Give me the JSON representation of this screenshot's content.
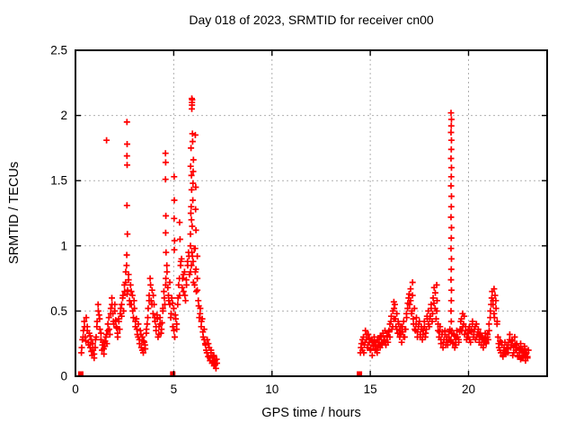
{
  "colors": {
    "marker": "#ff0000",
    "grid": "#b0b0b0",
    "frame": "#000000",
    "text": "#000000",
    "background": "#ffffff"
  },
  "chart_data": {
    "type": "scatter",
    "title": "Day 018 of 2023, SRMTID for receiver cn00",
    "xlabel": "GPS time / hours",
    "ylabel": "SRMTID / TECUs",
    "x_range": [
      0,
      24
    ],
    "y_range": [
      0,
      2.5
    ],
    "xticks": [
      {
        "value": 0,
        "label": "0"
      },
      {
        "value": 5,
        "label": "5"
      },
      {
        "value": 10,
        "label": "10"
      },
      {
        "value": 15,
        "label": "15"
      },
      {
        "value": 20,
        "label": "20"
      }
    ],
    "yticks": [
      {
        "value": 0,
        "label": "0"
      },
      {
        "value": 0.5,
        "label": "0.5"
      },
      {
        "value": 1,
        "label": "1"
      },
      {
        "value": 1.5,
        "label": "1.5"
      },
      {
        "value": 2,
        "label": "2"
      },
      {
        "value": 2.5,
        "label": "2.5"
      }
    ],
    "grid": "dashed",
    "legend": "none",
    "series": [
      {
        "name": "SRMTID",
        "marker": "plus",
        "color": "#ff0000",
        "runs": [
          {
            "t0": 0.3,
            "dt": 0.05,
            "values": [
              0.18,
              0.28,
              0.35,
              0.42,
              0.3,
              0.45,
              0.38,
              0.26,
              0.33,
              0.22,
              0.28,
              0.16,
              0.2,
              0.14,
              0.22,
              0.3,
              0.42,
              0.55,
              0.47,
              0.36,
              0.28,
              0.2,
              0.26,
              0.17,
              0.23,
              0.3,
              0.25,
              0.35,
              0.45,
              0.32,
              0.52,
              0.6,
              0.48,
              0.4,
              0.55,
              0.43,
              0.37,
              0.3,
              0.44,
              0.36,
              0.52,
              0.46,
              0.6,
              0.5,
              0.65,
              0.72,
              0.85,
              0.66,
              0.78,
              0.58,
              0.7,
              0.55,
              0.62,
              0.45,
              0.52,
              0.38,
              0.44,
              0.32,
              0.4,
              0.28,
              0.35,
              0.22,
              0.3,
              0.18,
              0.26,
              0.21,
              0.33,
              0.4,
              0.52,
              0.62,
              0.75,
              0.58,
              0.66,
              0.48,
              0.55,
              0.42,
              0.35,
              0.47,
              0.3,
              0.38,
              0.45,
              0.33,
              0.41,
              0.5,
              0.65,
              0.55,
              0.75,
              0.85,
              0.68,
              0.58,
              0.72,
              0.45,
              0.6,
              0.38,
              0.52,
              0.3,
              0.44,
              0.36,
              0.55,
              0.7,
              0.62,
              0.85,
              0.9,
              0.75,
              0.65,
              0.8,
              0.58,
              0.7,
              0.88,
              0.95,
              0.78,
              1.0,
              0.85,
              0.92,
              0.72,
              0.98,
              0.8,
              0.65,
              0.75,
              0.58,
              0.45,
              0.52,
              0.38,
              0.44,
              0.3,
              0.36,
              0.25,
              0.2,
              0.28,
              0.15,
              0.22,
              0.12,
              0.18,
              0.1,
              0.15,
              0.08,
              0.12,
              0.06,
              0.1
            ]
          },
          {
            "t0": 0.32,
            "dt": 0.07,
            "values": [
              0.22,
              0.3,
              0.38,
              0.27,
              0.35,
              0.24,
              0.31,
              0.19,
              0.25,
              0.17,
              0.28,
              0.38,
              0.5,
              0.44,
              0.33,
              0.24,
              0.21,
              0.27,
              0.32,
              0.4,
              0.36,
              0.48,
              0.55,
              0.42,
              0.5,
              0.38,
              0.33,
              0.42,
              0.48,
              0.55,
              0.62,
              0.7,
              0.8,
              0.63,
              0.74,
              0.55,
              0.65,
              0.5,
              0.58,
              0.42,
              0.36,
              0.3,
              0.25,
              0.32,
              0.2,
              0.27,
              0.24,
              0.36,
              0.45,
              0.58,
              0.7,
              0.55,
              0.62,
              0.45,
              0.38,
              0.44,
              0.32,
              0.4,
              0.36,
              0.52,
              0.6,
              0.7,
              0.8,
              0.62,
              0.55,
              0.48,
              0.56,
              0.35,
              0.47,
              0.4,
              0.6,
              0.75,
              0.88,
              0.68,
              0.78,
              0.62,
              0.74,
              0.85,
              0.92,
              0.8,
              0.95,
              0.88,
              0.7,
              0.82,
              0.66,
              0.54,
              0.48,
              0.42,
              0.34,
              0.28,
              0.24,
              0.18,
              0.25,
              0.14,
              0.2,
              0.11,
              0.16,
              0.09,
              0.13
            ]
          },
          {
            "t0": 14.5,
            "dt": 0.05,
            "values": [
              0.18,
              0.25,
              0.2,
              0.3,
              0.24,
              0.35,
              0.28,
              0.22,
              0.32,
              0.26,
              0.2,
              0.28,
              0.16,
              0.24,
              0.3,
              0.21,
              0.26,
              0.18,
              0.23,
              0.28,
              0.22,
              0.3,
              0.25,
              0.33,
              0.27,
              0.35,
              0.24,
              0.31,
              0.26,
              0.35,
              0.3,
              0.42,
              0.36,
              0.5,
              0.44,
              0.55,
              0.38,
              0.48,
              0.33,
              0.4,
              0.3,
              0.38,
              0.26,
              0.34,
              0.42,
              0.3,
              0.36,
              0.45,
              0.52,
              0.6,
              0.55,
              0.67,
              0.48,
              0.62,
              0.4,
              0.52,
              0.35,
              0.45,
              0.3,
              0.38,
              0.42,
              0.32,
              0.38,
              0.28,
              0.35,
              0.42,
              0.3,
              0.36,
              0.44,
              0.5,
              0.38,
              0.46,
              0.55,
              0.42,
              0.6,
              0.68,
              0.52,
              0.44,
              0.58,
              0.35,
              0.3,
              0.38,
              0.25,
              0.32,
              0.22,
              0.28,
              0.35,
              0.24,
              0.3,
              0.26,
              0.3,
              0.36,
              0.28,
              0.35,
              0.25,
              0.32,
              0.22,
              0.28,
              0.35,
              0.3,
              0.26,
              0.34,
              0.42,
              0.35,
              0.48,
              0.4,
              0.32,
              0.38,
              0.28,
              0.33,
              0.3,
              0.38,
              0.26,
              0.35,
              0.42,
              0.3,
              0.36,
              0.28,
              0.4,
              0.32,
              0.36,
              0.28,
              0.33,
              0.24,
              0.3,
              0.22,
              0.27,
              0.33,
              0.25,
              0.3,
              0.28,
              0.35,
              0.45,
              0.55,
              0.65,
              0.58,
              0.48,
              0.62,
              0.52,
              0.4,
              0.3,
              0.22,
              0.27,
              0.18,
              0.24,
              0.15,
              0.2,
              0.26,
              0.17,
              0.22,
              0.18,
              0.26,
              0.32,
              0.22,
              0.28,
              0.16,
              0.23,
              0.3,
              0.2,
              0.25,
              0.15,
              0.22,
              0.18,
              0.25,
              0.14,
              0.2,
              0.16,
              0.23,
              0.12,
              0.18,
              0.15,
              0.2
            ]
          },
          {
            "t0": 14.53,
            "dt": 0.07,
            "values": [
              0.22,
              0.28,
              0.18,
              0.26,
              0.32,
              0.24,
              0.29,
              0.21,
              0.27,
              0.23,
              0.26,
              0.2,
              0.28,
              0.24,
              0.31,
              0.26,
              0.33,
              0.28,
              0.24,
              0.3,
              0.34,
              0.4,
              0.46,
              0.38,
              0.52,
              0.44,
              0.36,
              0.42,
              0.35,
              0.32,
              0.38,
              0.3,
              0.36,
              0.48,
              0.56,
              0.63,
              0.58,
              0.5,
              0.44,
              0.36,
              0.4,
              0.34,
              0.4,
              0.3,
              0.36,
              0.32,
              0.38,
              0.33,
              0.46,
              0.4,
              0.44,
              0.52,
              0.48,
              0.56,
              0.64,
              0.5,
              0.4,
              0.34,
              0.28,
              0.34,
              0.26,
              0.32,
              0.28,
              0.24,
              0.34,
              0.27,
              0.33,
              0.26,
              0.31,
              0.24,
              0.3,
              0.28,
              0.36,
              0.44,
              0.38,
              0.46,
              0.35,
              0.3,
              0.36,
              0.28,
              0.34,
              0.4,
              0.32,
              0.38,
              0.3,
              0.34,
              0.26,
              0.31,
              0.28,
              0.24,
              0.29,
              0.26,
              0.32,
              0.4,
              0.5,
              0.6,
              0.55,
              0.45,
              0.58,
              0.42,
              0.25,
              0.2,
              0.26,
              0.16,
              0.22,
              0.19,
              0.24,
              0.21,
              0.28,
              0.24,
              0.27,
              0.18,
              0.24,
              0.2,
              0.16,
              0.21,
              0.13,
              0.19,
              0.15,
              0.21,
              0.17,
              0.14
            ]
          }
        ],
        "extra_points": [
          [
            1.58,
            1.81
          ],
          [
            2.62,
            1.95
          ],
          [
            2.63,
            1.78
          ],
          [
            2.62,
            1.69
          ],
          [
            2.63,
            1.62
          ],
          [
            2.62,
            1.31
          ],
          [
            2.64,
            1.09
          ],
          [
            2.61,
            0.93
          ],
          [
            4.58,
            1.71
          ],
          [
            4.59,
            1.64
          ],
          [
            4.58,
            1.51
          ],
          [
            4.6,
            1.23
          ],
          [
            4.59,
            1.1
          ],
          [
            4.61,
            0.95
          ],
          [
            5.02,
            1.53
          ],
          [
            5.03,
            1.35
          ],
          [
            5.02,
            1.21
          ],
          [
            5.04,
            1.04
          ],
          [
            5.03,
            0.97
          ],
          [
            5.3,
            1.18
          ],
          [
            5.32,
            1.05
          ],
          [
            5.92,
            2.13
          ],
          [
            5.93,
            2.1
          ],
          [
            5.94,
            2.12
          ],
          [
            5.93,
            2.08
          ],
          [
            5.92,
            2.05
          ],
          [
            5.95,
            1.86
          ],
          [
            5.96,
            1.8
          ],
          [
            5.88,
            1.75
          ],
          [
            5.86,
            1.61
          ],
          [
            5.9,
            1.54
          ],
          [
            5.91,
            1.43
          ],
          [
            5.89,
            1.3
          ],
          [
            5.87,
            1.25
          ],
          [
            5.9,
            1.2
          ],
          [
            5.85,
            1.09
          ],
          [
            5.94,
            1.15
          ],
          [
            5.97,
            1.35
          ],
          [
            5.98,
            1.48
          ],
          [
            5.99,
            1.57
          ],
          [
            6.0,
            1.66
          ],
          [
            6.1,
            1.85
          ],
          [
            6.12,
            1.45
          ],
          [
            6.11,
            1.28
          ],
          [
            6.13,
            1.12
          ],
          [
            6.09,
            0.98
          ],
          [
            6.2,
            0.92
          ],
          [
            16.2,
            0.57
          ],
          [
            17.15,
            0.72
          ],
          [
            18.38,
            0.7
          ],
          [
            21.3,
            0.67
          ],
          [
            19.11,
            2.02
          ],
          [
            19.13,
            1.97
          ],
          [
            19.12,
            1.92
          ],
          [
            19.11,
            1.87
          ],
          [
            19.13,
            1.81
          ],
          [
            19.12,
            1.74
          ],
          [
            19.11,
            1.67
          ],
          [
            19.13,
            1.6
          ],
          [
            19.12,
            1.53
          ],
          [
            19.11,
            1.46
          ],
          [
            19.13,
            1.38
          ],
          [
            19.12,
            1.3
          ],
          [
            19.11,
            1.22
          ],
          [
            19.13,
            1.14
          ],
          [
            19.12,
            1.06
          ],
          [
            19.11,
            0.98
          ],
          [
            19.13,
            0.9
          ],
          [
            19.12,
            0.82
          ],
          [
            19.11,
            0.74
          ],
          [
            19.13,
            0.66
          ],
          [
            19.12,
            0.58
          ],
          [
            19.11,
            0.5
          ],
          [
            19.12,
            0.42
          ]
        ],
        "zero_markers": [
          [
            0.27,
            0
          ],
          [
            4.95,
            0
          ],
          [
            14.45,
            0
          ]
        ]
      }
    ]
  }
}
